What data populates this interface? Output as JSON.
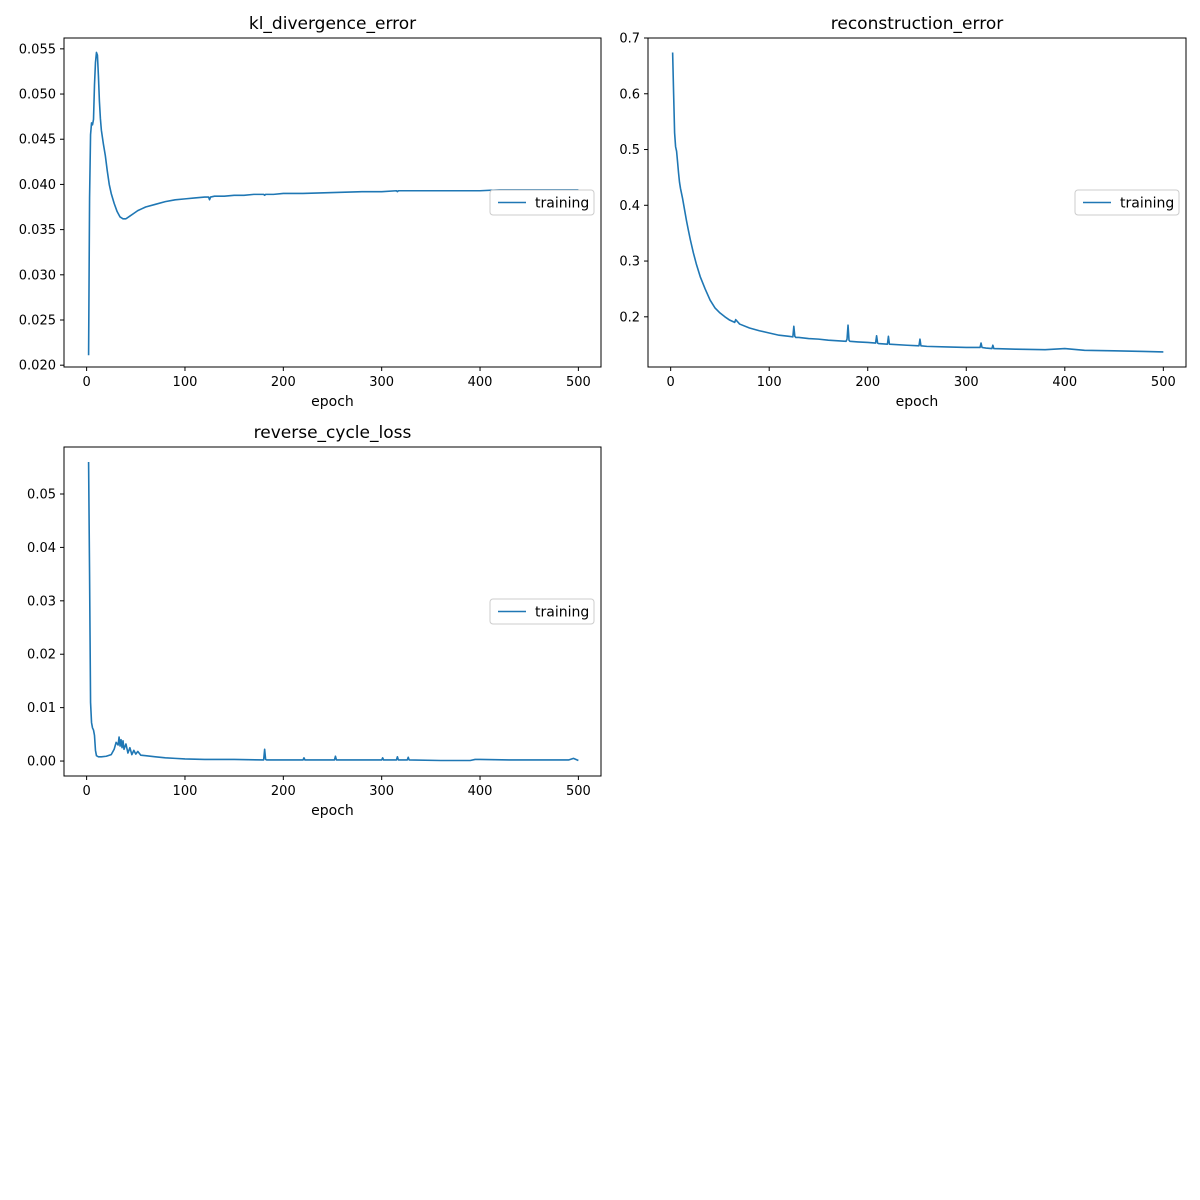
{
  "figure": {
    "background": "#ffffff",
    "series_color": "#1f77b4"
  },
  "chart_data": [
    {
      "type": "line",
      "title": "kl_divergence_error",
      "xlabel": "epoch",
      "ylabel": "",
      "xlim": [
        -23,
        523
      ],
      "ylim": [
        0.0198,
        0.0562
      ],
      "xticks": [
        0,
        100,
        200,
        300,
        400,
        500
      ],
      "yticks": [
        0.02,
        0.025,
        0.03,
        0.035,
        0.04,
        0.045,
        0.05,
        0.055
      ],
      "ytick_labels": [
        "0.020",
        "0.025",
        "0.030",
        "0.035",
        "0.040",
        "0.045",
        "0.050",
        "0.055"
      ],
      "grid": false,
      "legend": "center-right",
      "series": [
        {
          "name": "training",
          "color": "#1f77b4",
          "x": [
            2,
            3,
            4,
            5,
            6,
            7,
            8,
            9,
            10,
            11,
            12,
            13,
            14,
            15,
            17,
            19,
            21,
            23,
            25,
            28,
            31,
            34,
            37,
            40,
            44,
            48,
            52,
            56,
            60,
            70,
            80,
            90,
            100,
            110,
            120,
            124,
            125,
            126,
            130,
            140,
            150,
            160,
            170,
            180,
            181,
            182,
            190,
            200,
            220,
            250,
            280,
            300,
            315,
            316,
            317,
            320,
            350,
            380,
            400,
            420,
            450,
            480,
            500
          ],
          "y": [
            0.0211,
            0.0385,
            0.0455,
            0.0468,
            0.0466,
            0.0472,
            0.051,
            0.0535,
            0.0546,
            0.0543,
            0.052,
            0.0492,
            0.0473,
            0.046,
            0.0445,
            0.0432,
            0.0415,
            0.04,
            0.039,
            0.0379,
            0.037,
            0.0364,
            0.0362,
            0.0362,
            0.0365,
            0.0368,
            0.0371,
            0.0373,
            0.0375,
            0.0378,
            0.0381,
            0.0383,
            0.0384,
            0.0385,
            0.0386,
            0.0386,
            0.0383,
            0.0386,
            0.0387,
            0.0387,
            0.0388,
            0.0388,
            0.0389,
            0.0389,
            0.0388,
            0.0389,
            0.0389,
            0.039,
            0.039,
            0.0391,
            0.0392,
            0.0392,
            0.0393,
            0.0392,
            0.0393,
            0.0393,
            0.0393,
            0.0393,
            0.0393,
            0.0394,
            0.0394,
            0.0394,
            0.0394
          ]
        }
      ]
    },
    {
      "type": "line",
      "title": "reconstruction_error",
      "xlabel": "epoch",
      "ylabel": "",
      "xlim": [
        -23,
        523
      ],
      "ylim": [
        0.11,
        0.7
      ],
      "xticks": [
        0,
        100,
        200,
        300,
        400,
        500
      ],
      "yticks": [
        0.2,
        0.3,
        0.4,
        0.5,
        0.6,
        0.7
      ],
      "ytick_labels": [
        "0.2",
        "0.3",
        "0.4",
        "0.5",
        "0.6",
        "0.7"
      ],
      "grid": false,
      "legend": "center-right",
      "series": [
        {
          "name": "training",
          "color": "#1f77b4",
          "x": [
            2,
            3,
            4,
            5,
            6,
            7,
            8,
            9,
            10,
            12,
            14,
            16,
            18,
            20,
            23,
            26,
            30,
            35,
            40,
            45,
            50,
            55,
            60,
            65,
            66,
            70,
            80,
            90,
            100,
            110,
            120,
            124,
            125,
            126,
            127,
            130,
            140,
            150,
            160,
            170,
            178,
            179,
            180,
            181,
            182,
            190,
            200,
            208,
            209,
            210,
            211,
            220,
            221,
            222,
            240,
            252,
            253,
            254,
            260,
            280,
            300,
            314,
            315,
            316,
            320,
            326,
            327,
            328,
            350,
            380,
            400,
            420,
            450,
            480,
            500
          ],
          "y": [
            0.674,
            0.6,
            0.53,
            0.505,
            0.497,
            0.478,
            0.458,
            0.441,
            0.43,
            0.413,
            0.393,
            0.373,
            0.355,
            0.338,
            0.315,
            0.295,
            0.272,
            0.25,
            0.23,
            0.216,
            0.207,
            0.2,
            0.194,
            0.19,
            0.195,
            0.187,
            0.18,
            0.175,
            0.171,
            0.167,
            0.165,
            0.164,
            0.183,
            0.165,
            0.163,
            0.163,
            0.161,
            0.16,
            0.158,
            0.157,
            0.156,
            0.16,
            0.185,
            0.158,
            0.156,
            0.155,
            0.154,
            0.153,
            0.166,
            0.153,
            0.152,
            0.151,
            0.165,
            0.151,
            0.149,
            0.148,
            0.16,
            0.148,
            0.147,
            0.146,
            0.145,
            0.145,
            0.153,
            0.145,
            0.144,
            0.143,
            0.149,
            0.143,
            0.142,
            0.141,
            0.143,
            0.14,
            0.139,
            0.138,
            0.137
          ]
        }
      ]
    },
    {
      "type": "line",
      "title": "reverse_cycle_loss",
      "xlabel": "epoch",
      "ylabel": "",
      "xlim": [
        -23,
        523
      ],
      "ylim": [
        -0.0028,
        0.0588
      ],
      "xticks": [
        0,
        100,
        200,
        300,
        400,
        500
      ],
      "yticks": [
        0.0,
        0.01,
        0.02,
        0.03,
        0.04,
        0.05
      ],
      "ytick_labels": [
        "0.00",
        "0.01",
        "0.02",
        "0.03",
        "0.04",
        "0.05"
      ],
      "grid": false,
      "legend": "center-right",
      "series": [
        {
          "name": "training",
          "color": "#1f77b4",
          "x": [
            2,
            3,
            4,
            5,
            6,
            7,
            8,
            9,
            10,
            12,
            15,
            20,
            25,
            28,
            30,
            32,
            33,
            34,
            35,
            36,
            37,
            38,
            40,
            42,
            44,
            46,
            48,
            50,
            52,
            55,
            60,
            70,
            80,
            90,
            100,
            120,
            150,
            180,
            181,
            182,
            183,
            190,
            220,
            221,
            222,
            252,
            253,
            254,
            280,
            300,
            301,
            302,
            315,
            316,
            317,
            326,
            327,
            328,
            360,
            390,
            395,
            400,
            430,
            460,
            490,
            495,
            500
          ],
          "y": [
            0.056,
            0.035,
            0.011,
            0.0072,
            0.0062,
            0.0058,
            0.0048,
            0.002,
            0.001,
            0.0008,
            0.0008,
            0.0009,
            0.0012,
            0.0022,
            0.0035,
            0.003,
            0.0045,
            0.0028,
            0.004,
            0.0025,
            0.0038,
            0.0022,
            0.0032,
            0.0015,
            0.0025,
            0.0012,
            0.002,
            0.0013,
            0.0018,
            0.0011,
            0.001,
            0.0008,
            0.0006,
            0.0005,
            0.0004,
            0.0003,
            0.0003,
            0.0002,
            0.0022,
            0.0003,
            0.0002,
            0.0002,
            0.0002,
            0.0006,
            0.0002,
            0.0002,
            0.0009,
            0.0002,
            0.0002,
            0.0002,
            0.0006,
            0.0002,
            0.0002,
            0.0008,
            0.0002,
            0.0002,
            0.0007,
            0.0002,
            0.0001,
            0.0001,
            0.0003,
            0.0003,
            0.0002,
            0.0002,
            0.0002,
            0.0005,
            0.0001
          ]
        }
      ]
    }
  ]
}
